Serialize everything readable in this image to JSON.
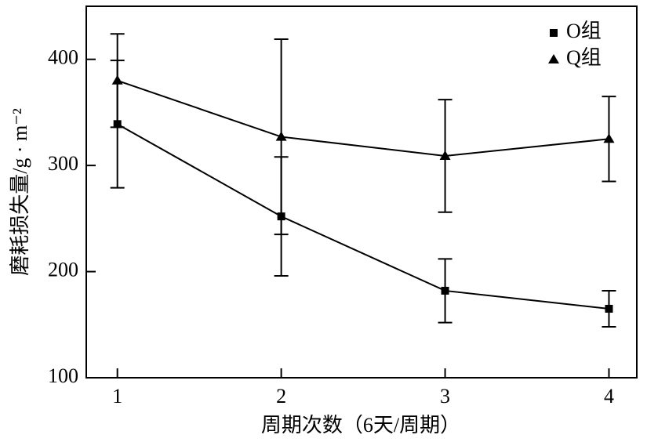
{
  "chart_data": {
    "type": "line",
    "x_label": "周期次数（6天/周期）",
    "y_label": "磨耗损失量/g · m⁻²",
    "x": [
      1,
      2,
      3,
      4
    ],
    "xlim": [
      0.81,
      4.17
    ],
    "xticks": [
      1,
      2,
      3,
      4
    ],
    "ylim": [
      100,
      450
    ],
    "yticks": [
      100,
      200,
      300,
      400
    ],
    "legend": "upper right",
    "series": [
      {
        "name": "O组",
        "color": "#000000",
        "marker": "square",
        "values": [
          339,
          252,
          182,
          165
        ],
        "errors": [
          60,
          56,
          30,
          17
        ]
      },
      {
        "name": "Q组",
        "color": "#000000",
        "marker": "triangle",
        "values": [
          380,
          327,
          309,
          325
        ],
        "errors": [
          44,
          92,
          53,
          40
        ]
      }
    ]
  }
}
